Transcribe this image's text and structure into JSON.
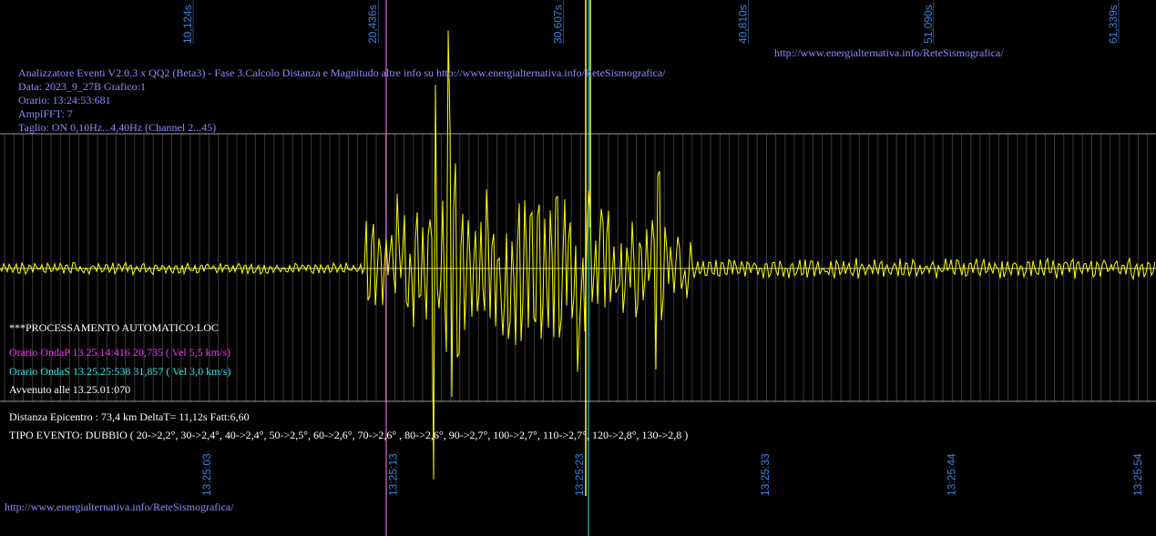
{
  "top_labels": [
    "10,124s",
    "20,436s",
    "30,607s",
    "40,810s",
    "51,090s",
    "61,339s"
  ],
  "bottom_labels": [
    "13:25:03",
    "13:25:13",
    "13:25:23",
    "13:25:33",
    "13:25:44",
    "13:25:54"
  ],
  "header": {
    "url": "http://www.energialternativa.info/ReteSismografica/",
    "lines": [
      "Analizzatore Eventi V2.0.3 x QQ2 (Beta3) - Fase 3.Calcolo Distanza e Magnitudo altre info su http://www.energialternativa.info/ReteSismografica/",
      "Data: 2023_9_27B Grafico:1",
      "Orario: 13:24:53:681",
      "AmplFFT: 7",
      "Taglio: ON 0,10Hz...4,40Hz       (Channel 2...45)"
    ]
  },
  "processing": {
    "title": "***PROCESSAMENTO AUTOMATICO:LOC",
    "wave_p": "Orario OndaP 13.25.14:416  20,735 ( Vel 5,5 km/s)",
    "wave_s": "Orario OndaS 13.25.25:538  31,857 ( Vel 3,0 km/s)",
    "occurred": "Avvenuto alle 13.25.01:070",
    "distance": "Distanza Epicentro : 73,4 km DeltaT= 11,12s  Fatt:6,60",
    "event_type": "TIPO EVENTO: DUBBIO ( 20->2,2°, 30->2,4°, 40->2,4°, 50->2,5°, 60->2,6°, 70->2,6° , 80->2,6°, 90->2,7°, 100->2,7°, 110->2,7°, 120->2,8°, 130->2,8 )"
  },
  "footer_url": "http://www.energialternativa.info/ReteSismografica/"
}
